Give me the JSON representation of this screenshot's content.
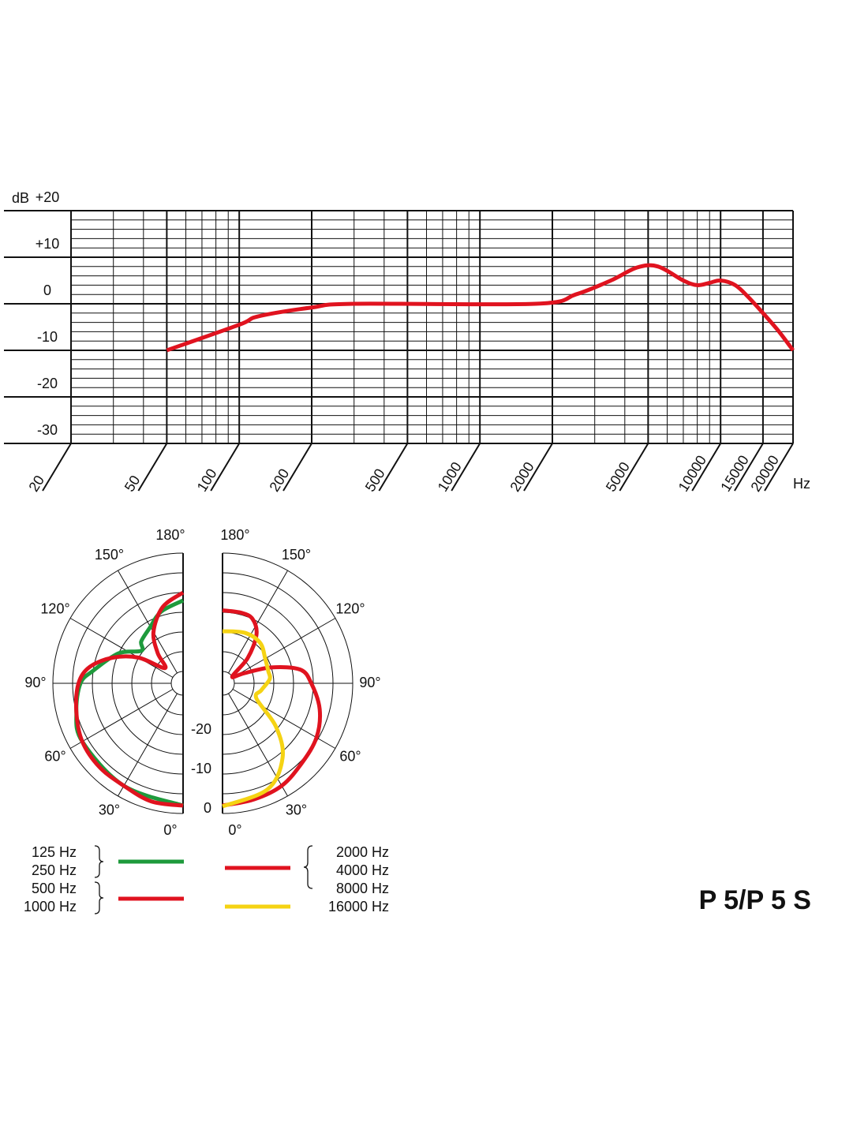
{
  "product": "P 5/P 5 S",
  "chart_data": [
    {
      "type": "line",
      "xlog": true,
      "xlabel": "Hz",
      "ylabel": "dB",
      "xlim": [
        20,
        20000
      ],
      "ylim": [
        -30,
        20
      ],
      "xticks": [
        20,
        50,
        100,
        200,
        500,
        1000,
        2000,
        5000,
        10000,
        15000,
        20000
      ],
      "yticks": [
        -30,
        -20,
        -10,
        0,
        {
          "value": 10,
          "label": "+10"
        },
        {
          "value": 20,
          "label": "+20"
        }
      ],
      "xgrid": [
        30,
        40,
        60,
        70,
        80,
        90,
        300,
        400,
        600,
        700,
        800,
        900,
        3000,
        4000,
        6000,
        7000,
        8000,
        9000
      ],
      "ygrid": [
        -28,
        -26,
        -24,
        -22,
        -18,
        -16,
        -14,
        -12,
        -8,
        -6,
        -4,
        -2,
        2,
        4,
        6,
        8,
        12,
        14,
        16,
        18
      ],
      "series": [
        {
          "color": "#e0131f",
          "x": [
            50,
            100,
            120,
            200,
            300,
            1700,
            2500,
            3500,
            4500,
            5500,
            7000,
            8000,
            9000,
            10000,
            11500,
            13000,
            15000,
            17500,
            20000
          ],
          "values": [
            -10,
            -4.5,
            -2.7,
            -0.8,
            0,
            0,
            2,
            5,
            7.8,
            8,
            5,
            4,
            4.5,
            5,
            4,
            1.5,
            -2,
            -6,
            -10
          ]
        }
      ]
    },
    {
      "type": "polar",
      "rlim": [
        -30,
        0
      ],
      "rticks": [
        0,
        -10,
        -20
      ],
      "rgrid": [
        0,
        -5,
        -10,
        -15,
        -20,
        -25,
        -30
      ],
      "angle_ticks": [
        {
          "value": 0,
          "label": "0°"
        },
        {
          "value": 30,
          "label": "30°"
        },
        {
          "value": 60,
          "label": "60°"
        },
        {
          "value": 90,
          "label": "90°"
        },
        {
          "value": 120,
          "label": "120°"
        },
        {
          "value": 150,
          "label": "150°"
        },
        {
          "value": 180,
          "label": "180°"
        }
      ],
      "series": [
        {
          "side": "left",
          "color": "#1e9a3c",
          "labels": [
            "125 Hz",
            "250 Hz"
          ],
          "angles": [
            0,
            30,
            60,
            75,
            90,
            98,
            115,
            128,
            135,
            149,
            163,
            180
          ],
          "values": [
            -2,
            -3,
            -3.5,
            -5,
            -7,
            -10,
            -15,
            -19.6,
            -18,
            -16.6,
            -14,
            -12
          ]
        },
        {
          "side": "left",
          "color": "#e0131f",
          "labels": [
            "500 Hz",
            "1000 Hz"
          ],
          "angles": [
            0,
            15,
            30,
            45,
            60,
            75,
            90,
            100,
            110,
            120,
            130,
            140,
            150,
            165,
            180
          ],
          "values": [
            -2,
            -2,
            -3,
            -3,
            -3.5,
            -5,
            -6.5,
            -9,
            -14,
            -20,
            -27,
            -23,
            -18,
            -13,
            -10
          ]
        },
        {
          "side": "right",
          "color": "#e0131f",
          "labels": [
            "2000 Hz",
            "4000 Hz",
            "8000 Hz"
          ],
          "angles": [
            0,
            15,
            30,
            45,
            60,
            75,
            90,
            100,
            108,
            115,
            125,
            135,
            145,
            155,
            165,
            180
          ],
          "values": [
            -2,
            -2.5,
            -3,
            -4.5,
            -5.5,
            -7.5,
            -10.5,
            -13,
            -20,
            -27,
            -30,
            -24,
            -18,
            -15,
            -14.5,
            -14.5
          ]
        },
        {
          "side": "right",
          "color": "#f5d313",
          "labels": [
            "16000 Hz"
          ],
          "angles": [
            0,
            23,
            39,
            51,
            66,
            80,
            95,
            105,
            120,
            137,
            156,
            180
          ],
          "values": [
            -1.8,
            -3.8,
            -8.8,
            -15.6,
            -23.6,
            -23,
            -21,
            -21,
            -20.5,
            -19,
            -19,
            -19.8
          ]
        }
      ]
    }
  ]
}
